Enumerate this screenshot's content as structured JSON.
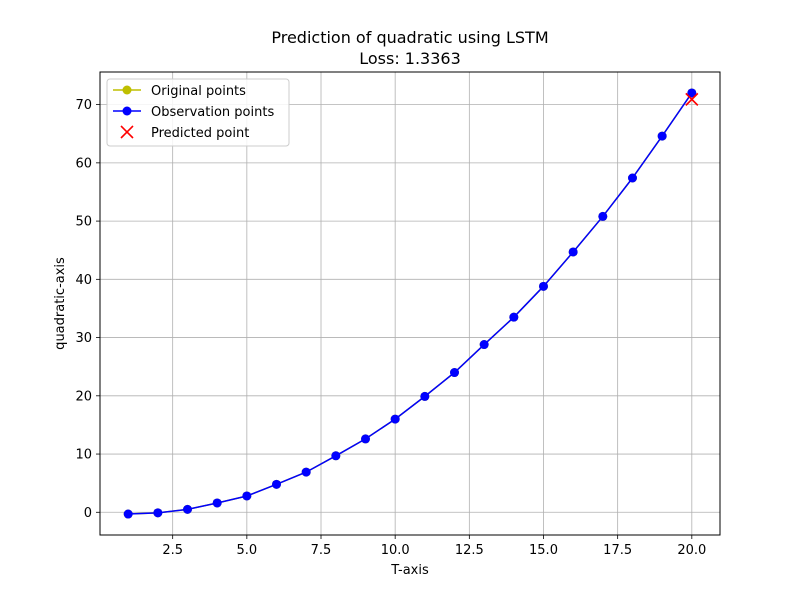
{
  "chart_data": {
    "type": "line",
    "title": "Prediction of quadratic using LSTM",
    "subtitle": "Loss: 1.3363",
    "xlabel": "T-axis",
    "ylabel": "quadratic-axis",
    "xlim": [
      0.05,
      20.95
    ],
    "ylim": [
      -3.9,
      75.6
    ],
    "xticks": [
      2.5,
      5.0,
      7.5,
      10.0,
      12.5,
      15.0,
      17.5,
      20.0
    ],
    "xtick_labels": [
      "2.5",
      "5.0",
      "7.5",
      "10.0",
      "12.5",
      "15.0",
      "17.5",
      "20.0"
    ],
    "yticks": [
      0,
      10,
      20,
      30,
      40,
      50,
      60,
      70
    ],
    "ytick_labels": [
      "0",
      "10",
      "20",
      "30",
      "40",
      "50",
      "60",
      "70"
    ],
    "grid": true,
    "legend_position": "top-left",
    "series": [
      {
        "name": "Original points",
        "kind": "line-marker",
        "color": "#bfbf00",
        "x": [
          1,
          2,
          3,
          4,
          5,
          6,
          7,
          8,
          9,
          10,
          11,
          12,
          13,
          14,
          15,
          16,
          17,
          18,
          19,
          20
        ],
        "y": [
          -0.3,
          -0.1,
          0.5,
          1.6,
          2.8,
          4.8,
          6.9,
          9.7,
          12.6,
          16.0,
          19.9,
          24.0,
          28.8,
          33.5,
          38.8,
          44.7,
          50.8,
          57.4,
          64.6,
          72.0
        ]
      },
      {
        "name": "Observation points",
        "kind": "line-marker",
        "color": "#0000ff",
        "x": [
          1,
          2,
          3,
          4,
          5,
          6,
          7,
          8,
          9,
          10,
          11,
          12,
          13,
          14,
          15,
          16,
          17,
          18,
          19,
          20
        ],
        "y": [
          -0.3,
          -0.1,
          0.5,
          1.6,
          2.8,
          4.8,
          6.9,
          9.7,
          12.6,
          16.0,
          19.9,
          24.0,
          28.8,
          33.5,
          38.8,
          44.7,
          50.8,
          57.4,
          64.6,
          72.0
        ]
      },
      {
        "name": "Predicted point",
        "kind": "x-marker",
        "color": "#ff0000",
        "x": [
          20
        ],
        "y": [
          70.9
        ]
      }
    ]
  }
}
